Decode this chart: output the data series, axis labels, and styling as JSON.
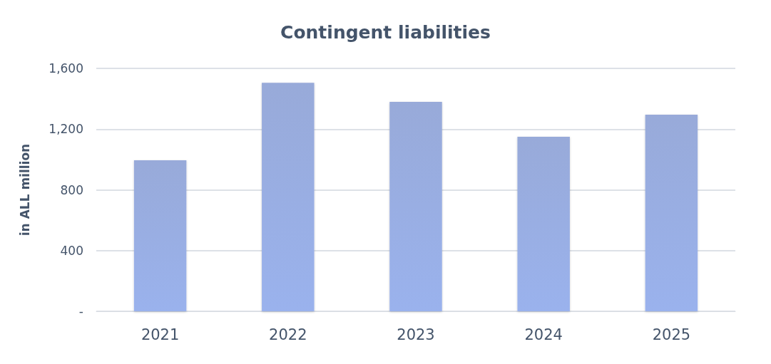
{
  "chart_data": {
    "type": "bar",
    "title": "Contingent liabilities",
    "ylabel": "in ALL million",
    "categories": [
      "2021",
      "2022",
      "2023",
      "2024",
      "2025"
    ],
    "values": [
      995,
      1505,
      1380,
      1150,
      1295
    ],
    "color": "#8a9fd4",
    "ylim": [
      0,
      1600
    ],
    "yticks": [
      {
        "value": 0,
        "label": "-"
      },
      {
        "value": 400,
        "label": "400"
      },
      {
        "value": 800,
        "label": "800"
      },
      {
        "value": 1200,
        "label": "1,200"
      },
      {
        "value": 1600,
        "label": "1,600"
      }
    ],
    "grid": "y"
  }
}
